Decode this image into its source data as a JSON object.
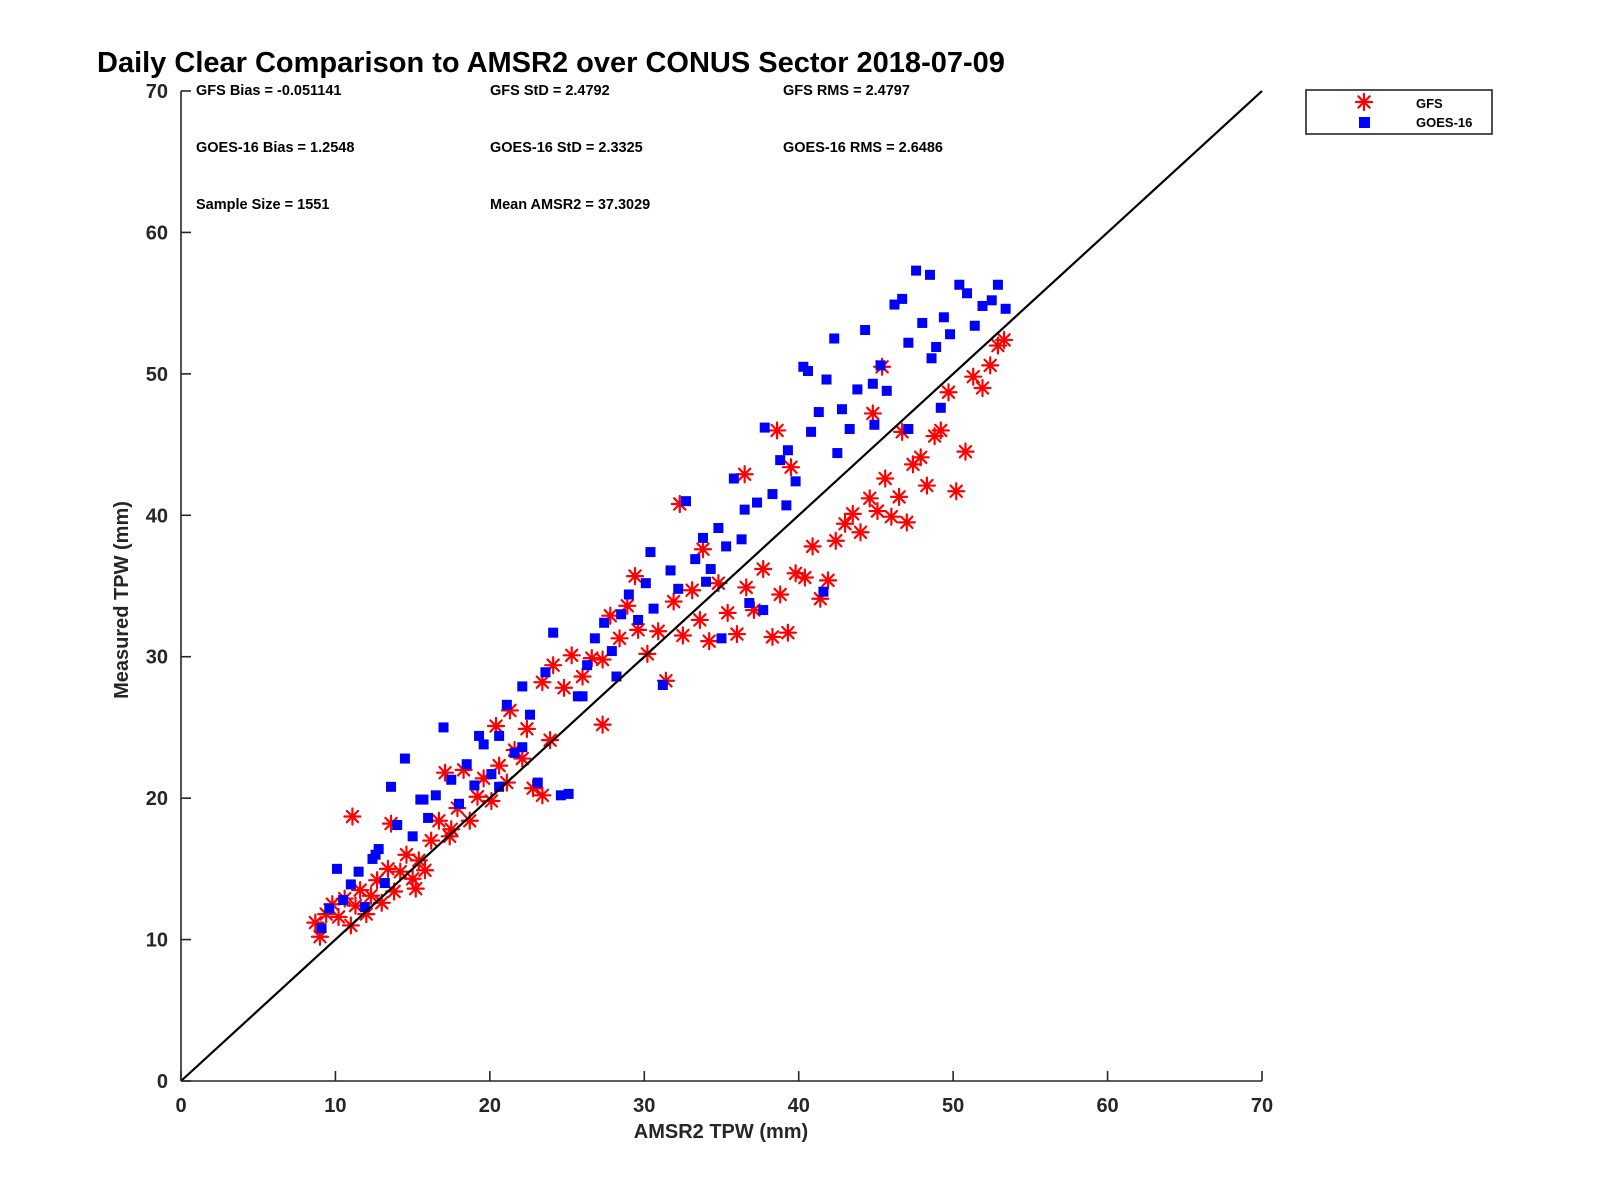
{
  "chart_data": {
    "type": "scatter",
    "title": "Daily Clear Comparison to AMSR2 over CONUS Sector 2018-07-09",
    "xlabel": "AMSR2 TPW (mm)",
    "ylabel": "Measured TPW (mm)",
    "xlim": [
      0,
      70
    ],
    "ylim": [
      0,
      70
    ],
    "xticks": [
      "0",
      "10",
      "20",
      "30",
      "40",
      "50",
      "60",
      "70"
    ],
    "yticks": [
      "0",
      "10",
      "20",
      "30",
      "40",
      "50",
      "60",
      "70"
    ],
    "grid": false,
    "legend_position": "outside-top-right",
    "reference_line": "1:1",
    "stats": {
      "gfs_bias": "GFS Bias = -0.051141",
      "gfs_std": "GFS StD = 2.4792",
      "gfs_rms": "GFS RMS = 2.4797",
      "goes_bias": "GOES-16 Bias = 1.2548",
      "goes_std": "GOES-16 StD = 2.3325",
      "goes_rms": "GOES-16 RMS = 2.6486",
      "sample_size": "Sample Size = 1551",
      "mean_amsr2": "Mean AMSR2 = 37.3029"
    },
    "series": [
      {
        "name": "GFS",
        "marker": "asterisk",
        "color": "#ff0000",
        "points": [
          [
            8.7,
            11.2
          ],
          [
            9.0,
            10.2
          ],
          [
            9.4,
            11.8
          ],
          [
            9.8,
            12.5
          ],
          [
            10.2,
            11.6
          ],
          [
            10.6,
            12.9
          ],
          [
            11.0,
            11.0
          ],
          [
            11.3,
            12.4
          ],
          [
            11.6,
            13.5
          ],
          [
            12.0,
            11.8
          ],
          [
            12.3,
            13.1
          ],
          [
            12.7,
            14.2
          ],
          [
            13.0,
            12.6
          ],
          [
            13.4,
            15.0
          ],
          [
            13.8,
            13.4
          ],
          [
            14.2,
            14.8
          ],
          [
            14.6,
            16.0
          ],
          [
            15.0,
            14.3
          ],
          [
            15.4,
            15.6
          ],
          [
            15.8,
            14.9
          ],
          [
            11.1,
            18.7
          ],
          [
            13.6,
            18.2
          ],
          [
            16.2,
            17.0
          ],
          [
            16.7,
            18.4
          ],
          [
            17.1,
            21.8
          ],
          [
            17.4,
            17.3
          ],
          [
            17.9,
            19.3
          ],
          [
            18.3,
            22.0
          ],
          [
            18.7,
            18.4
          ],
          [
            19.2,
            20.1
          ],
          [
            19.6,
            21.4
          ],
          [
            20.1,
            19.8
          ],
          [
            20.6,
            22.3
          ],
          [
            21.1,
            21.1
          ],
          [
            21.6,
            23.4
          ],
          [
            22.1,
            22.8
          ],
          [
            22.4,
            24.9
          ],
          [
            22.8,
            20.7
          ],
          [
            23.4,
            20.2
          ],
          [
            23.9,
            24.1
          ],
          [
            23.4,
            28.2
          ],
          [
            24.1,
            29.4
          ],
          [
            24.8,
            27.8
          ],
          [
            25.3,
            30.1
          ],
          [
            26.0,
            28.6
          ],
          [
            26.6,
            29.9
          ],
          [
            27.3,
            25.2
          ],
          [
            27.8,
            32.9
          ],
          [
            28.4,
            31.3
          ],
          [
            28.9,
            33.6
          ],
          [
            29.6,
            31.9
          ],
          [
            30.2,
            30.2
          ],
          [
            30.9,
            31.8
          ],
          [
            31.4,
            28.3
          ],
          [
            31.9,
            33.9
          ],
          [
            32.5,
            31.5
          ],
          [
            33.1,
            34.7
          ],
          [
            33.6,
            32.6
          ],
          [
            34.2,
            31.1
          ],
          [
            34.8,
            35.2
          ],
          [
            35.4,
            33.1
          ],
          [
            36.0,
            31.6
          ],
          [
            36.6,
            34.9
          ],
          [
            37.1,
            33.3
          ],
          [
            37.7,
            36.2
          ],
          [
            38.3,
            31.4
          ],
          [
            38.8,
            34.4
          ],
          [
            39.3,
            31.7
          ],
          [
            39.8,
            35.9
          ],
          [
            40.4,
            35.6
          ],
          [
            40.9,
            37.8
          ],
          [
            41.4,
            34.1
          ],
          [
            41.9,
            35.4
          ],
          [
            42.4,
            38.2
          ],
          [
            43.0,
            39.4
          ],
          [
            43.5,
            40.1
          ],
          [
            44.0,
            38.8
          ],
          [
            44.6,
            41.2
          ],
          [
            45.1,
            40.3
          ],
          [
            45.6,
            42.6
          ],
          [
            46.0,
            39.9
          ],
          [
            46.5,
            41.3
          ],
          [
            47.0,
            39.5
          ],
          [
            47.4,
            43.6
          ],
          [
            47.9,
            44.1
          ],
          [
            48.3,
            42.1
          ],
          [
            48.8,
            45.6
          ],
          [
            49.2,
            46.0
          ],
          [
            49.7,
            48.7
          ],
          [
            50.2,
            41.7
          ],
          [
            50.8,
            44.5
          ],
          [
            51.3,
            49.8
          ],
          [
            51.9,
            49.0
          ],
          [
            52.4,
            50.6
          ],
          [
            52.9,
            52.0
          ],
          [
            53.3,
            52.4
          ],
          [
            46.7,
            45.9
          ],
          [
            45.4,
            50.5
          ],
          [
            38.6,
            46.0
          ],
          [
            36.5,
            42.9
          ],
          [
            32.3,
            40.8
          ],
          [
            29.4,
            35.7
          ],
          [
            20.4,
            25.1
          ],
          [
            21.3,
            26.2
          ],
          [
            17.5,
            17.8
          ],
          [
            15.2,
            13.6
          ],
          [
            27.3,
            29.8
          ],
          [
            33.8,
            37.6
          ],
          [
            39.5,
            43.4
          ],
          [
            44.8,
            47.2
          ]
        ]
      },
      {
        "name": "GOES-16",
        "marker": "square",
        "color": "#0000ff",
        "points": [
          [
            9.1,
            10.8
          ],
          [
            9.6,
            12.2
          ],
          [
            10.1,
            15.0
          ],
          [
            10.5,
            12.8
          ],
          [
            11.0,
            13.9
          ],
          [
            11.5,
            14.8
          ],
          [
            11.9,
            12.3
          ],
          [
            12.4,
            15.7
          ],
          [
            12.8,
            16.4
          ],
          [
            13.2,
            14.0
          ],
          [
            13.6,
            20.8
          ],
          [
            14.0,
            18.1
          ],
          [
            14.5,
            22.8
          ],
          [
            15.0,
            17.3
          ],
          [
            15.5,
            19.9
          ],
          [
            16.0,
            18.6
          ],
          [
            16.5,
            20.2
          ],
          [
            17.0,
            25.0
          ],
          [
            17.5,
            21.3
          ],
          [
            18.0,
            19.6
          ],
          [
            18.5,
            22.4
          ],
          [
            19.0,
            20.9
          ],
          [
            19.6,
            23.8
          ],
          [
            20.1,
            21.7
          ],
          [
            20.6,
            24.4
          ],
          [
            21.1,
            26.6
          ],
          [
            21.6,
            23.2
          ],
          [
            22.1,
            27.9
          ],
          [
            22.6,
            25.9
          ],
          [
            23.1,
            21.1
          ],
          [
            23.6,
            28.9
          ],
          [
            24.1,
            31.7
          ],
          [
            24.6,
            20.2
          ],
          [
            25.1,
            20.3
          ],
          [
            25.7,
            27.2
          ],
          [
            26.3,
            29.4
          ],
          [
            26.8,
            31.3
          ],
          [
            27.4,
            32.4
          ],
          [
            27.9,
            30.4
          ],
          [
            28.5,
            33.0
          ],
          [
            29.0,
            34.4
          ],
          [
            29.6,
            32.6
          ],
          [
            30.1,
            35.2
          ],
          [
            30.6,
            33.4
          ],
          [
            31.2,
            28.0
          ],
          [
            31.7,
            36.1
          ],
          [
            32.2,
            34.8
          ],
          [
            32.7,
            41.0
          ],
          [
            33.3,
            36.9
          ],
          [
            33.8,
            38.4
          ],
          [
            34.3,
            36.2
          ],
          [
            34.8,
            39.1
          ],
          [
            35.3,
            37.8
          ],
          [
            35.8,
            42.6
          ],
          [
            36.3,
            38.3
          ],
          [
            36.8,
            33.8
          ],
          [
            37.3,
            40.9
          ],
          [
            37.8,
            46.2
          ],
          [
            38.3,
            41.5
          ],
          [
            38.8,
            43.9
          ],
          [
            39.3,
            44.6
          ],
          [
            39.8,
            42.4
          ],
          [
            40.3,
            50.5
          ],
          [
            40.8,
            45.9
          ],
          [
            41.3,
            47.3
          ],
          [
            41.8,
            49.6
          ],
          [
            42.3,
            52.5
          ],
          [
            42.8,
            47.5
          ],
          [
            43.3,
            46.1
          ],
          [
            43.8,
            48.9
          ],
          [
            44.3,
            53.1
          ],
          [
            44.8,
            49.3
          ],
          [
            45.3,
            50.6
          ],
          [
            45.7,
            48.8
          ],
          [
            46.2,
            54.9
          ],
          [
            46.7,
            55.3
          ],
          [
            47.1,
            52.2
          ],
          [
            47.6,
            57.3
          ],
          [
            48.0,
            53.6
          ],
          [
            48.5,
            57.0
          ],
          [
            48.9,
            51.9
          ],
          [
            49.4,
            54.0
          ],
          [
            49.8,
            52.8
          ],
          [
            50.4,
            56.3
          ],
          [
            50.9,
            55.7
          ],
          [
            51.4,
            53.4
          ],
          [
            51.9,
            54.8
          ],
          [
            52.5,
            55.2
          ],
          [
            52.9,
            56.3
          ],
          [
            53.4,
            54.6
          ],
          [
            49.2,
            47.6
          ],
          [
            47.1,
            46.1
          ],
          [
            41.6,
            34.6
          ],
          [
            37.7,
            33.3
          ],
          [
            35.0,
            31.3
          ],
          [
            28.2,
            28.6
          ],
          [
            22.1,
            23.6
          ],
          [
            19.3,
            24.4
          ],
          [
            15.7,
            19.9
          ],
          [
            12.6,
            16.0
          ],
          [
            30.4,
            37.4
          ],
          [
            36.5,
            40.4
          ],
          [
            42.5,
            44.4
          ],
          [
            44.9,
            46.4
          ],
          [
            39.2,
            40.7
          ],
          [
            34.0,
            35.3
          ],
          [
            26.0,
            27.2
          ],
          [
            20.6,
            20.8
          ],
          [
            40.6,
            50.2
          ],
          [
            48.6,
            51.1
          ]
        ]
      }
    ]
  }
}
